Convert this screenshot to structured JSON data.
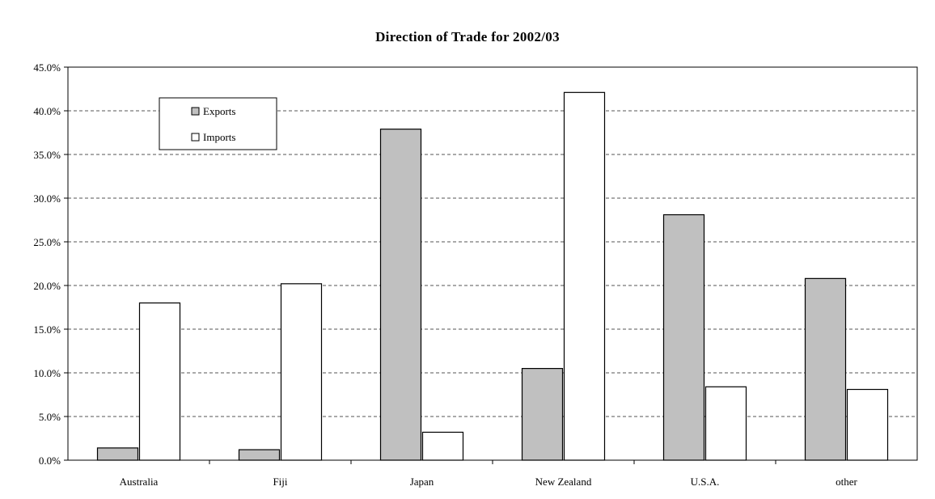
{
  "chart_data": {
    "type": "bar",
    "title": "Direction of Trade for 2002/03",
    "xlabel": "",
    "ylabel": "",
    "categories": [
      "Australia",
      "Fiji",
      "Japan",
      "New Zealand",
      "U.S.A.",
      "other"
    ],
    "series": [
      {
        "name": "Exports",
        "values": [
          1.4,
          1.2,
          37.9,
          10.5,
          28.1,
          20.8
        ],
        "color": "#c0c0c0"
      },
      {
        "name": "Imports",
        "values": [
          18.0,
          20.2,
          3.2,
          42.1,
          8.4,
          8.1
        ],
        "color": "#ffffff"
      }
    ],
    "ylim": [
      0,
      45
    ],
    "yticks": [
      "0.0%",
      "5.0%",
      "10.0%",
      "15.0%",
      "20.0%",
      "25.0%",
      "30.0%",
      "35.0%",
      "40.0%",
      "45.0%"
    ],
    "grid": "horizontal dashed",
    "legend": "top-left"
  }
}
